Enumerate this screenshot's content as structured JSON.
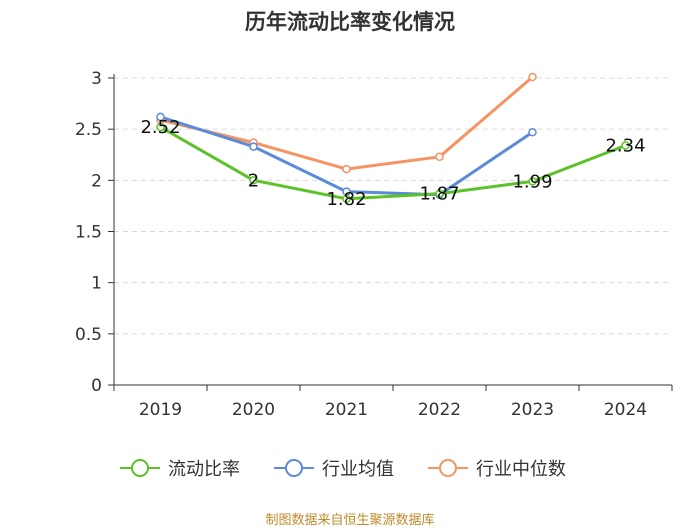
{
  "chart_data": {
    "type": "line",
    "title": "历年流动比率变化情况",
    "categories": [
      "2019",
      "2020",
      "2021",
      "2022",
      "2023",
      "2024"
    ],
    "ylim": [
      0,
      3
    ],
    "yticks": [
      "0",
      "0.5",
      "1",
      "1.5",
      "2",
      "2.5",
      "3"
    ],
    "grid": true,
    "legend_position": "bottom",
    "series": [
      {
        "name": "流动比率",
        "color": "#5bc227",
        "values": [
          2.52,
          2.0,
          1.82,
          1.87,
          1.99,
          2.34
        ],
        "labels": [
          "2.52",
          "2",
          "1.82",
          "1.87",
          "1.99",
          "2.34"
        ]
      },
      {
        "name": "行业均值",
        "color": "#5b8bd8",
        "values": [
          2.62,
          2.33,
          1.89,
          1.86,
          2.47,
          null
        ]
      },
      {
        "name": "行业中位数",
        "color": "#f59462",
        "values": [
          2.59,
          2.37,
          2.11,
          2.23,
          3.01,
          null
        ]
      }
    ]
  },
  "source": "制图数据来自恒生聚源数据库"
}
